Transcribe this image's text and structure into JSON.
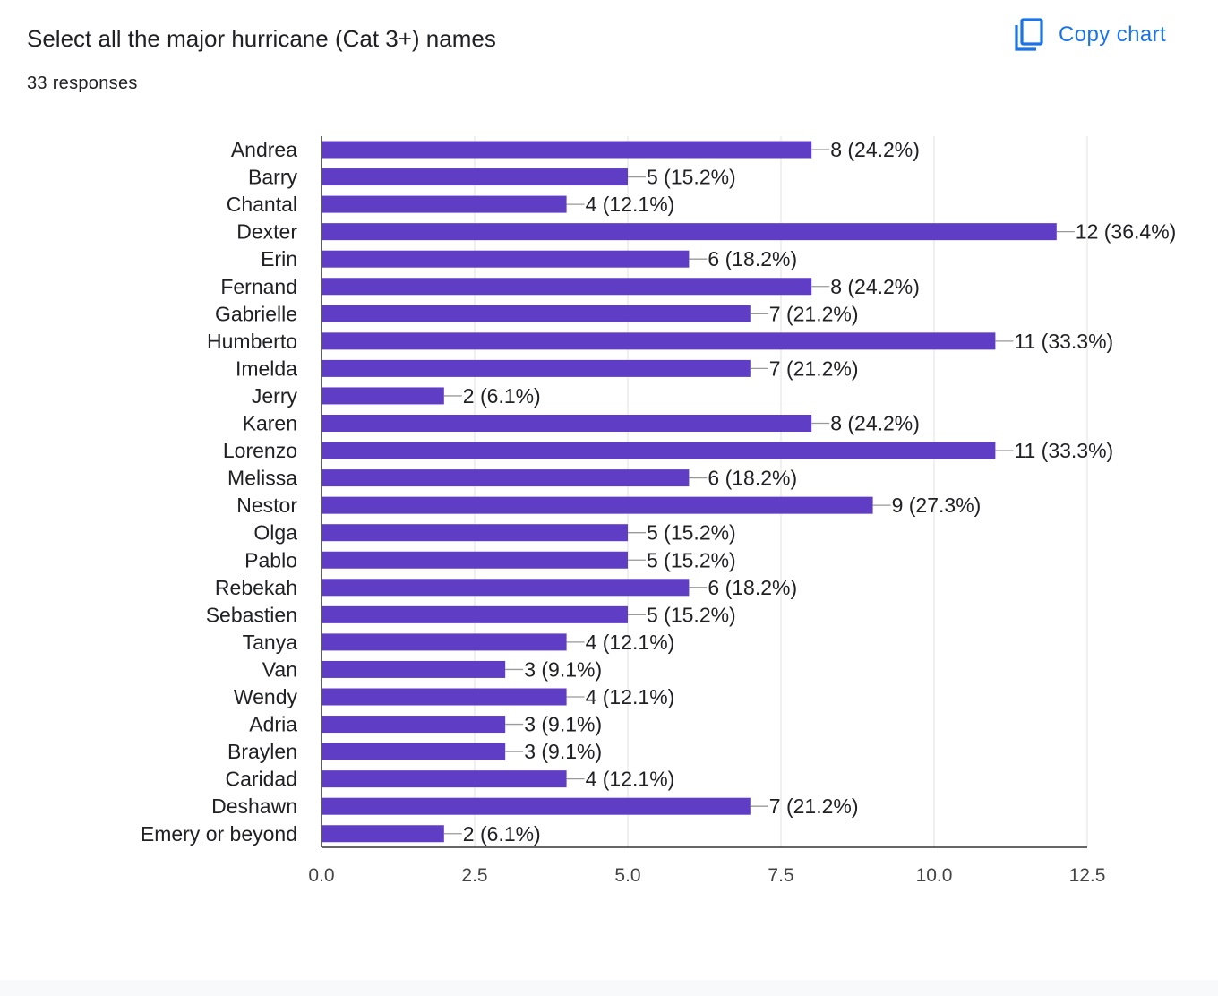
{
  "header": {
    "title": "Select all the major hurricane (Cat 3+) names",
    "responses": "33 responses",
    "copy_label": "Copy chart"
  },
  "icons": {
    "copy": "copy-icon"
  },
  "colors": {
    "bar": "#5f3dc4",
    "accent": "#1a73e8",
    "grid": "#ececec",
    "axis": "#333333",
    "text": "#202124"
  },
  "chart_data": {
    "type": "bar",
    "orientation": "horizontal",
    "categories": [
      "Andrea",
      "Barry",
      "Chantal",
      "Dexter",
      "Erin",
      "Fernand",
      "Gabrielle",
      "Humberto",
      "Imelda",
      "Jerry",
      "Karen",
      "Lorenzo",
      "Melissa",
      "Nestor",
      "Olga",
      "Pablo",
      "Rebekah",
      "Sebastien",
      "Tanya",
      "Van",
      "Wendy",
      "Adria",
      "Braylen",
      "Caridad",
      "Deshawn",
      "Emery or beyond"
    ],
    "values": [
      8,
      5,
      4,
      12,
      6,
      8,
      7,
      11,
      7,
      2,
      8,
      11,
      6,
      9,
      5,
      5,
      6,
      5,
      4,
      3,
      4,
      3,
      3,
      4,
      7,
      2
    ],
    "labels": [
      "8 (24.2%)",
      "5 (15.2%)",
      "4 (12.1%)",
      "12 (36.4%)",
      "6 (18.2%)",
      "8 (24.2%)",
      "7 (21.2%)",
      "11 (33.3%)",
      "7 (21.2%)",
      "2 (6.1%)",
      "8 (24.2%)",
      "11 (33.3%)",
      "6 (18.2%)",
      "9 (27.3%)",
      "5 (15.2%)",
      "5 (15.2%)",
      "6 (18.2%)",
      "5 (15.2%)",
      "4 (12.1%)",
      "3 (9.1%)",
      "4 (12.1%)",
      "3 (9.1%)",
      "3 (9.1%)",
      "4 (12.1%)",
      "7 (21.2%)",
      "2 (6.1%)"
    ],
    "xticks": [
      "0.0",
      "2.5",
      "5.0",
      "7.5",
      "10.0",
      "12.5"
    ],
    "xlim": [
      0,
      12.5
    ],
    "grid": true,
    "title": "",
    "xlabel": "",
    "ylabel": ""
  }
}
